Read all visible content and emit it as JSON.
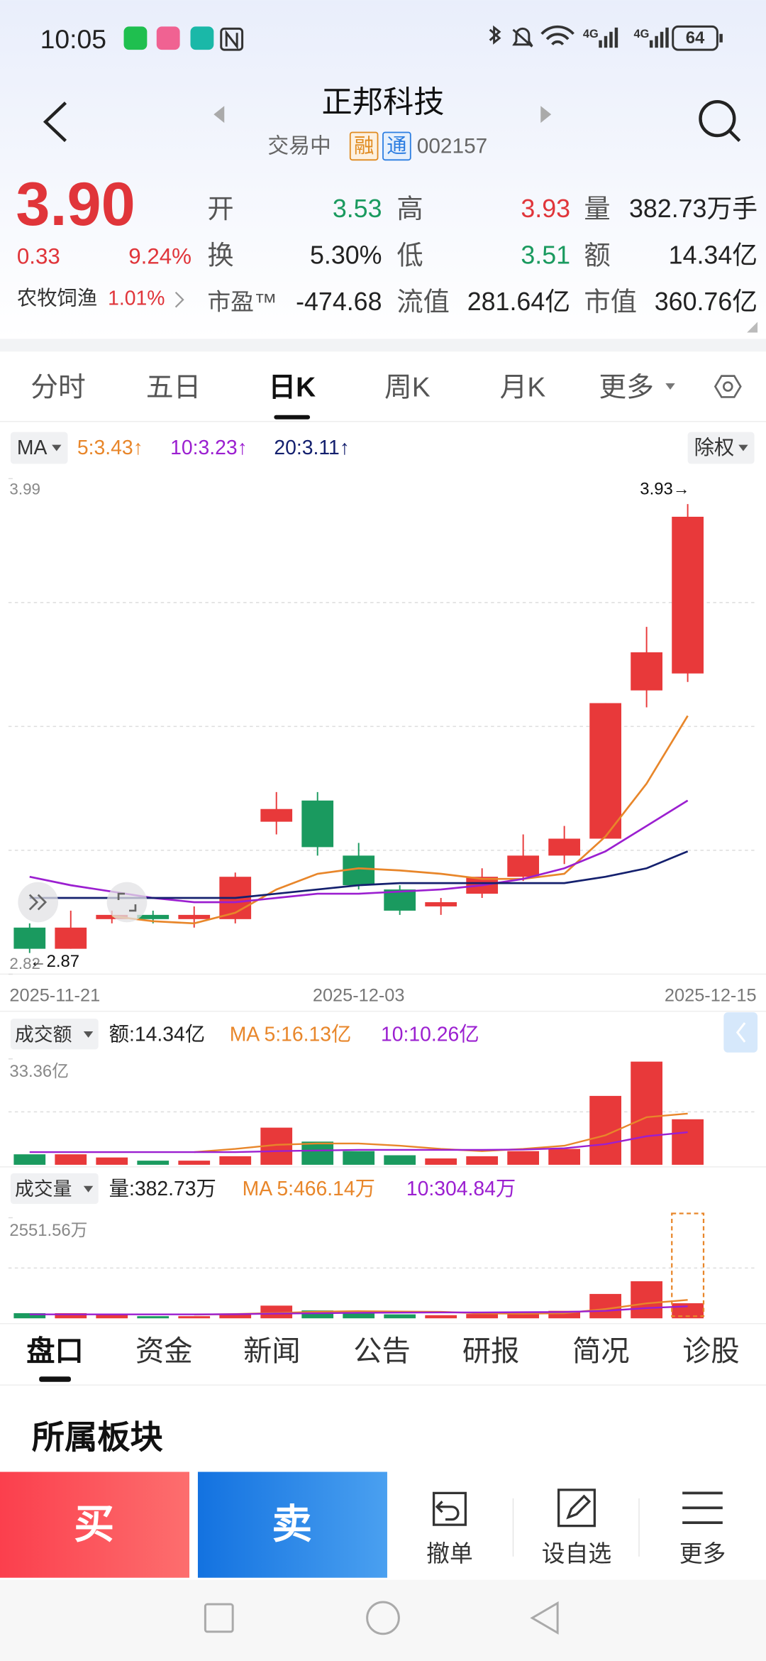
{
  "status_bar": {
    "time": "10:05",
    "network": [
      "4G",
      "4G"
    ],
    "battery": "64"
  },
  "header": {
    "title": "正邦科技",
    "status": "交易中",
    "tags": [
      "融",
      "通"
    ],
    "code": "002157"
  },
  "quote": {
    "price": "3.90",
    "change": "0.33",
    "change_pct": "9.24%",
    "sector": "农牧饲渔",
    "sector_pct": "1.01%",
    "fields": [
      {
        "label": "开",
        "value": "3.53",
        "color": "#1a9a5f"
      },
      {
        "label": "高",
        "value": "3.93",
        "color": "#e0353a"
      },
      {
        "label": "量",
        "value": "382.73万手",
        "color": "#222222"
      },
      {
        "label": "换",
        "value": "5.30%",
        "color": "#222222"
      },
      {
        "label": "低",
        "value": "3.51",
        "color": "#1a9a5f"
      },
      {
        "label": "额",
        "value": "14.34亿",
        "color": "#222222"
      },
      {
        "label": "市盈™",
        "value": "-474.68",
        "color": "#222222"
      },
      {
        "label": "流值",
        "value": "281.64亿",
        "color": "#222222"
      },
      {
        "label": "市值",
        "value": "360.76亿",
        "color": "#222222"
      }
    ]
  },
  "tabs": {
    "items": [
      "分时",
      "五日",
      "日K",
      "周K",
      "月K",
      "更多"
    ],
    "active": 2
  },
  "chart_data": [
    {
      "type": "candlestick",
      "legend_label": "MA",
      "adjust_label": "除权",
      "categories": [
        "2025-11-21",
        null,
        null,
        null,
        null,
        null,
        null,
        null,
        "2025-12-03",
        null,
        null,
        null,
        null,
        null,
        null,
        null,
        "2025-12-15"
      ],
      "open": [
        2.93,
        2.88,
        2.95,
        2.96,
        2.95,
        2.95,
        3.18,
        3.23,
        3.1,
        3.02,
        2.98,
        3.01,
        3.05,
        3.1,
        3.14,
        3.49,
        3.53
      ],
      "close": [
        2.88,
        2.93,
        2.96,
        2.95,
        2.96,
        3.05,
        3.21,
        3.12,
        3.03,
        2.97,
        2.99,
        3.05,
        3.1,
        3.14,
        3.46,
        3.58,
        3.9
      ],
      "high": [
        2.94,
        2.97,
        2.97,
        2.97,
        2.98,
        3.06,
        3.25,
        3.25,
        3.13,
        3.03,
        3.0,
        3.07,
        3.15,
        3.17,
        3.46,
        3.64,
        3.93
      ],
      "low": [
        2.87,
        2.88,
        2.94,
        2.94,
        2.93,
        2.94,
        3.15,
        3.1,
        3.02,
        2.96,
        2.96,
        3.0,
        3.04,
        3.08,
        3.14,
        3.45,
        3.51
      ],
      "up_color": "#e8393a",
      "down_color": "#1a9a5f",
      "series": [
        {
          "name": "5:3.43↑",
          "color": "#e8862a",
          "values": [
            null,
            null,
            2.957,
            2.945,
            2.94,
            2.965,
            3.02,
            3.057,
            3.07,
            3.065,
            3.057,
            3.045,
            3.045,
            3.057,
            3.145,
            3.27,
            3.43
          ]
        },
        {
          "name": "10:3.23↑",
          "color": "#9b1fd0",
          "values": [
            3.05,
            3.03,
            3.015,
            3.0,
            2.99,
            2.99,
            3.0,
            3.01,
            3.01,
            3.015,
            3.02,
            3.03,
            3.045,
            3.07,
            3.11,
            3.17,
            3.23
          ]
        },
        {
          "name": "20:3.11↑",
          "color": "#14206e",
          "values": [
            3.0,
            3.0,
            3.0,
            3.0,
            3.0,
            3.0,
            3.01,
            3.02,
            3.03,
            3.035,
            3.035,
            3.035,
            3.035,
            3.035,
            3.05,
            3.07,
            3.11
          ]
        }
      ],
      "annotations": [
        "3.93→",
        "←2.87"
      ],
      "ylim": [
        2.82,
        3.99
      ],
      "yticks": [
        2.82,
        3.99
      ],
      "grid": [
        3.1125,
        3.405,
        3.6975
      ]
    },
    {
      "type": "bar",
      "title": "成交额",
      "label": "额:14.34亿",
      "values": [
        3.3,
        3.3,
        2.3,
        1.3,
        1.3,
        2.7,
        11.7,
        7.3,
        4.3,
        3.0,
        2.0,
        2.7,
        4.3,
        5.0,
        21.7,
        32.5,
        14.34
      ],
      "series": [
        {
          "name": "MA 5:16.13亿",
          "color": "#e8862a",
          "values": [
            null,
            null,
            null,
            null,
            4.0,
            5.0,
            6.3,
            6.7,
            6.7,
            6.0,
            5.0,
            4.3,
            5.0,
            6.0,
            9.3,
            15.0,
            16.13
          ]
        },
        {
          "name": "10:10.26亿",
          "color": "#9b1fd0",
          "values": [
            4.0,
            4.0,
            4.0,
            4.0,
            4.0,
            4.0,
            4.3,
            4.5,
            4.7,
            4.7,
            4.7,
            4.7,
            4.8,
            5.2,
            6.5,
            9.0,
            10.26
          ]
        }
      ],
      "ylim": [
        0,
        33.36
      ],
      "yticks": [
        {
          "value": 33.36,
          "label": "33.36亿"
        }
      ],
      "grid": [
        16.68
      ]
    },
    {
      "type": "bar",
      "title": "成交量",
      "label": "量:382.73万",
      "values": [
        130,
        130,
        90,
        55,
        55,
        110,
        322,
        200,
        130,
        100,
        80,
        110,
        170,
        190,
        618,
        940,
        382.73
      ],
      "series": [
        {
          "name": "MA 5:466.14万",
          "color": "#e8862a",
          "values": [
            null,
            null,
            null,
            null,
            92,
            108,
            134,
            167,
            182,
            172,
            166,
            124,
            118,
            130,
            234,
            380,
            466.14
          ]
        },
        {
          "name": "10:304.84万",
          "color": "#9b1fd0",
          "values": [
            100,
            100,
            100,
            100,
            100,
            105,
            120,
            130,
            140,
            145,
            150,
            150,
            155,
            160,
            190,
            260,
            304.84
          ]
        }
      ],
      "ylim": [
        0,
        2551.56
      ],
      "yticks": [
        {
          "value": 2551.56,
          "label": "2551.56万"
        }
      ],
      "grid": [
        1275.78
      ]
    }
  ],
  "bottom_tabs": {
    "items": [
      "盘口",
      "资金",
      "新闻",
      "公告",
      "研报",
      "简况",
      "诊股"
    ],
    "active": 0
  },
  "section_title": "所属板块",
  "actions": {
    "buy": "买",
    "sell": "卖",
    "tools": [
      "撤单",
      "设自选",
      "更多"
    ]
  }
}
